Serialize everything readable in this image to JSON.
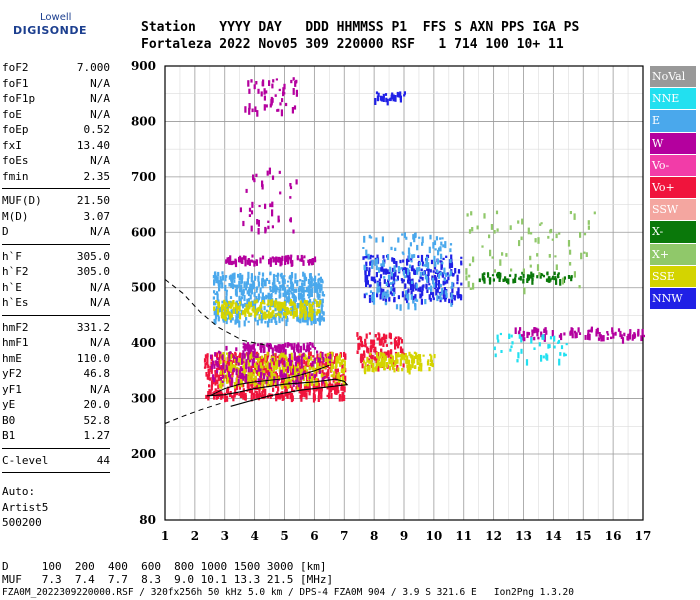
{
  "logo": {
    "top": "Lowell",
    "main": "DIGISONDE"
  },
  "header": {
    "line1": "Station   YYYY DAY   DDD HHMMSS P1  FFS S AXN PPS IGA PS",
    "line2": "Fortaleza 2022 Nov05 309 220000 RSF   1 714 100 10+ 11"
  },
  "params": [
    {
      "k": "foF2",
      "v": "7.000"
    },
    {
      "k": "foF1",
      "v": "N/A"
    },
    {
      "k": "foF1p",
      "v": "N/A"
    },
    {
      "k": "foE",
      "v": "N/A"
    },
    {
      "k": "foEp",
      "v": "0.52"
    },
    {
      "k": "fxI",
      "v": "13.40"
    },
    {
      "k": "foEs",
      "v": "N/A"
    },
    {
      "k": "fmin",
      "v": "2.35"
    },
    {
      "sep": true
    },
    {
      "k": "MUF(D)",
      "v": "21.50"
    },
    {
      "k": "M(D)",
      "v": "3.07"
    },
    {
      "k": "D",
      "v": "N/A"
    },
    {
      "sep": true
    },
    {
      "k": "h`F",
      "v": "305.0"
    },
    {
      "k": "h`F2",
      "v": "305.0"
    },
    {
      "k": "h`E",
      "v": "N/A"
    },
    {
      "k": "h`Es",
      "v": "N/A"
    },
    {
      "sep": true
    },
    {
      "k": "hmF2",
      "v": "331.2"
    },
    {
      "k": "hmF1",
      "v": "N/A"
    },
    {
      "k": "hmE",
      "v": "110.0"
    },
    {
      "k": "yF2",
      "v": "46.8"
    },
    {
      "k": "yF1",
      "v": "N/A"
    },
    {
      "k": "yE",
      "v": "20.0"
    },
    {
      "k": "B0",
      "v": "52.8"
    },
    {
      "k": "B1",
      "v": "1.27"
    },
    {
      "sep": true
    },
    {
      "k": "C-level",
      "v": "44"
    },
    {
      "sep": true
    }
  ],
  "auto": {
    "line1": "Auto:",
    "line2": "Artist5",
    "line3": "500200"
  },
  "footer": {
    "line1": "D     100  200  400  600  800 1000 1500 3000 [km]",
    "line2": "MUF   7.3  7.4  7.7  8.3  9.0 10.1 13.3 21.5 [MHz]",
    "line3": "FZA0M_2022309220000.RSF / 320fx256h 50 kHz 5.0 km / DPS-4 FZA0M 904 / 3.9 S 321.6 E   Ion2Png 1.3.20"
  },
  "legend": [
    {
      "label": "NoVal",
      "color": "#999999"
    },
    {
      "label": "NNE",
      "color": "#22e0f0"
    },
    {
      "label": "E",
      "color": "#4aa8ec"
    },
    {
      "label": "W",
      "color": "#b4009e"
    },
    {
      "label": "Vo-",
      "color": "#f23ca8"
    },
    {
      "label": "Vo+",
      "color": "#f0143c"
    },
    {
      "label": "SSW",
      "color": "#f4a6a0"
    },
    {
      "label": "X-",
      "color": "#0a780a"
    },
    {
      "label": "X+",
      "color": "#90c86a"
    },
    {
      "label": "SSE",
      "color": "#d4d400"
    },
    {
      "label": "NNW",
      "color": "#2020e6"
    }
  ],
  "chart_data": {
    "type": "scatter",
    "xlabel": "",
    "ylabel": "",
    "xlim": [
      1,
      17
    ],
    "ylim": [
      80,
      900
    ],
    "xticks": [
      "1",
      "2",
      "3",
      "4",
      "5",
      "6",
      "7",
      "8",
      "9",
      "10",
      "11",
      "12",
      "13",
      "14",
      "15",
      "16",
      "17"
    ],
    "yticks": [
      "80",
      "200",
      "300",
      "400",
      "500",
      "600",
      "700",
      "800",
      "900"
    ],
    "grid": true,
    "trace_clusters": [
      {
        "name": "E",
        "x": [
          2.6,
          6.3
        ],
        "y": [
          440,
          530
        ],
        "n": 520
      },
      {
        "name": "SSE",
        "x": [
          2.6,
          6.2
        ],
        "y": [
          450,
          480
        ],
        "n": 180
      },
      {
        "name": "W",
        "x": [
          3.0,
          6.0
        ],
        "y": [
          548,
          560
        ],
        "n": 80
      },
      {
        "name": "W",
        "x": [
          3.5,
          6.0
        ],
        "y": [
          392,
          402
        ],
        "n": 80
      },
      {
        "name": "Vo+",
        "x": [
          2.3,
          7.0
        ],
        "y": [
          305,
          385
        ],
        "n": 650
      },
      {
        "name": "SSE",
        "x": [
          2.8,
          7.0
        ],
        "y": [
          325,
          385
        ],
        "n": 300
      },
      {
        "name": "W",
        "x": [
          2.5,
          6.5
        ],
        "y": [
          330,
          395
        ],
        "n": 160
      },
      {
        "name": "Vo+",
        "x": [
          7.4,
          9.0
        ],
        "y": [
          360,
          420
        ],
        "n": 120
      },
      {
        "name": "SSE",
        "x": [
          7.6,
          10.0
        ],
        "y": [
          355,
          385
        ],
        "n": 120
      },
      {
        "name": "NNW",
        "x": [
          7.6,
          10.9
        ],
        "y": [
          480,
          560
        ],
        "n": 260
      },
      {
        "name": "E",
        "x": [
          7.6,
          10.6
        ],
        "y": [
          470,
          600
        ],
        "n": 150
      },
      {
        "name": "X-",
        "x": [
          11.5,
          14.6
        ],
        "y": [
          515,
          530
        ],
        "n": 70
      },
      {
        "name": "X+",
        "x": [
          11.0,
          15.5
        ],
        "y": [
          500,
          640
        ],
        "n": 70
      },
      {
        "name": "W",
        "x": [
          12.7,
          17.0
        ],
        "y": [
          410,
          430
        ],
        "n": 90
      },
      {
        "name": "NNE",
        "x": [
          12.0,
          14.5
        ],
        "y": [
          370,
          420
        ],
        "n": 40
      },
      {
        "name": "W",
        "x": [
          3.6,
          5.4
        ],
        "y": [
          820,
          880
        ],
        "n": 50
      },
      {
        "name": "NNW",
        "x": [
          8.0,
          9.0
        ],
        "y": [
          840,
          855
        ],
        "n": 25
      },
      {
        "name": "W",
        "x": [
          3.5,
          5.4
        ],
        "y": [
          600,
          720
        ],
        "n": 40
      }
    ],
    "profile_solid": [
      [
        2.4,
        305
      ],
      [
        3,
        307
      ],
      [
        3.5,
        312
      ],
      [
        4,
        318
      ],
      [
        5,
        326
      ],
      [
        6,
        330
      ],
      [
        6.7,
        335
      ],
      [
        7.0,
        331
      ],
      [
        7.1,
        325
      ],
      [
        6.6,
        322
      ],
      [
        5.5,
        315
      ],
      [
        4.5,
        305
      ],
      [
        3.8,
        295
      ],
      [
        3.2,
        286
      ]
    ],
    "profile_dashed_upper": [
      [
        1.0,
        515
      ],
      [
        1.6,
        490
      ],
      [
        2.2,
        455
      ],
      [
        2.8,
        428
      ],
      [
        3.6,
        405
      ],
      [
        4.5,
        395
      ]
    ],
    "profile_dashed_lower": [
      [
        1.0,
        255
      ],
      [
        1.6,
        268
      ],
      [
        2.2,
        280
      ],
      [
        2.9,
        292
      ]
    ],
    "trace_line": [
      [
        2.5,
        305
      ],
      [
        3,
        318
      ],
      [
        3.5,
        326
      ],
      [
        4,
        330
      ],
      [
        4.5,
        333
      ],
      [
        5,
        336
      ],
      [
        5.5,
        342
      ],
      [
        6,
        350
      ],
      [
        6.5,
        360
      ]
    ]
  }
}
